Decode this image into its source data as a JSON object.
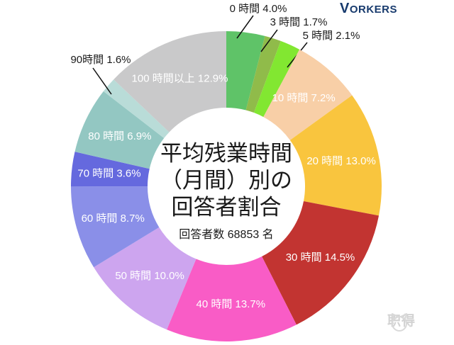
{
  "header": {
    "logo_v": "V",
    "logo_rest": "ORKERS",
    "logo_color": "#173a6d"
  },
  "center": {
    "title_lines": [
      "平均残業時間",
      "（月間）別の",
      "回答者割合"
    ],
    "subtitle": "回答者数 68853 名"
  },
  "watermark": {
    "text": "职得"
  },
  "chart_data": {
    "type": "pie",
    "variant": "donut",
    "title": "平均残業時間（月間）別の回答者割合",
    "subtitle": "回答者数 68853 名",
    "unit": "%",
    "start_angle_deg": 0,
    "direction": "clockwise",
    "inner_radius_ratio": 0.51,
    "background": "#ffffff",
    "label_color_inside": "#ffffff",
    "label_color_outside": "#1a1a1a",
    "leader_line_color": "#111111",
    "legend": "none",
    "slices": [
      {
        "label": "0 時間",
        "value": 4.0,
        "percent_text": "4.0%",
        "color": "#5fc368",
        "placement": "outside"
      },
      {
        "label": "3 時間",
        "value": 1.7,
        "percent_text": "1.7%",
        "color": "#90bb4a",
        "placement": "outside"
      },
      {
        "label": "5 時間",
        "value": 2.1,
        "percent_text": "2.1%",
        "color": "#82e731",
        "placement": "outside"
      },
      {
        "label": "10 時間",
        "value": 7.2,
        "percent_text": "7.2%",
        "color": "#f8cfa7",
        "placement": "inside"
      },
      {
        "label": "20 時間",
        "value": 13.0,
        "percent_text": "13.0%",
        "color": "#f9c53e",
        "placement": "inside"
      },
      {
        "label": "30 時間",
        "value": 14.5,
        "percent_text": "14.5%",
        "color": "#c23431",
        "placement": "inside"
      },
      {
        "label": "40 時間",
        "value": 13.7,
        "percent_text": "13.7%",
        "color": "#f95cc6",
        "placement": "inside"
      },
      {
        "label": "50 時間",
        "value": 10.0,
        "percent_text": "10.0%",
        "color": "#cda5ef",
        "placement": "inside"
      },
      {
        "label": "60 時間",
        "value": 8.7,
        "percent_text": "8.7%",
        "color": "#8a8fe8",
        "placement": "inside"
      },
      {
        "label": "70 時間",
        "value": 3.6,
        "percent_text": "3.6%",
        "color": "#6569de",
        "placement": "inside"
      },
      {
        "label": "80 時間",
        "value": 6.9,
        "percent_text": "6.9%",
        "color": "#93c7c2",
        "placement": "inside"
      },
      {
        "label": "90時間",
        "value": 1.6,
        "percent_text": "1.6%",
        "color": "#b9dcd8",
        "placement": "outside"
      },
      {
        "label": "100 時間以上",
        "value": 12.9,
        "percent_text": "12.9%",
        "color": "#c9c9ca",
        "placement": "inside"
      }
    ]
  }
}
